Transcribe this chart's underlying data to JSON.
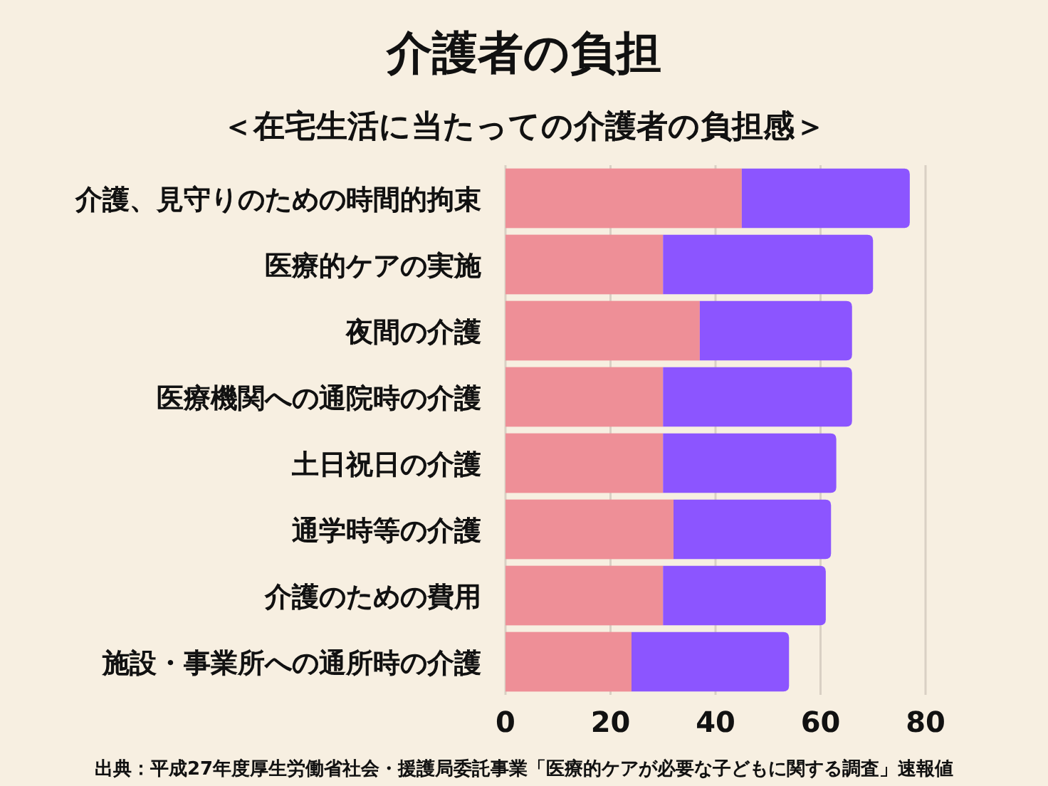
{
  "chart_data": {
    "type": "bar",
    "orientation": "horizontal",
    "stacked": true,
    "title": "介護者の負担",
    "subtitle": "＜在宅生活に当たっての介護者の負担感＞",
    "categories": [
      "介護、見守りのための時間的拘束",
      "医療的ケアの実施",
      "夜間の介護",
      "医療機関への通院時の介護",
      "土日祝日の介護",
      "通学時等の介護",
      "介護のための費用",
      "施設・事業所への通所時の介護"
    ],
    "series": [
      {
        "color": "#ee8f97",
        "values": [
          45,
          30,
          37,
          30,
          30,
          32,
          30,
          24
        ]
      },
      {
        "color": "#8c55ff",
        "values": [
          32,
          40,
          29,
          36,
          33,
          30,
          31,
          30
        ]
      }
    ],
    "xlim": [
      0,
      80
    ],
    "xticks": [
      0,
      20,
      40,
      60,
      80
    ],
    "grid": "x",
    "annotations": [
      "出典：平成27年度厚生労働省社会・援護局委託事業「医療的ケアが必要な子どもに関する調査」速報値"
    ]
  }
}
